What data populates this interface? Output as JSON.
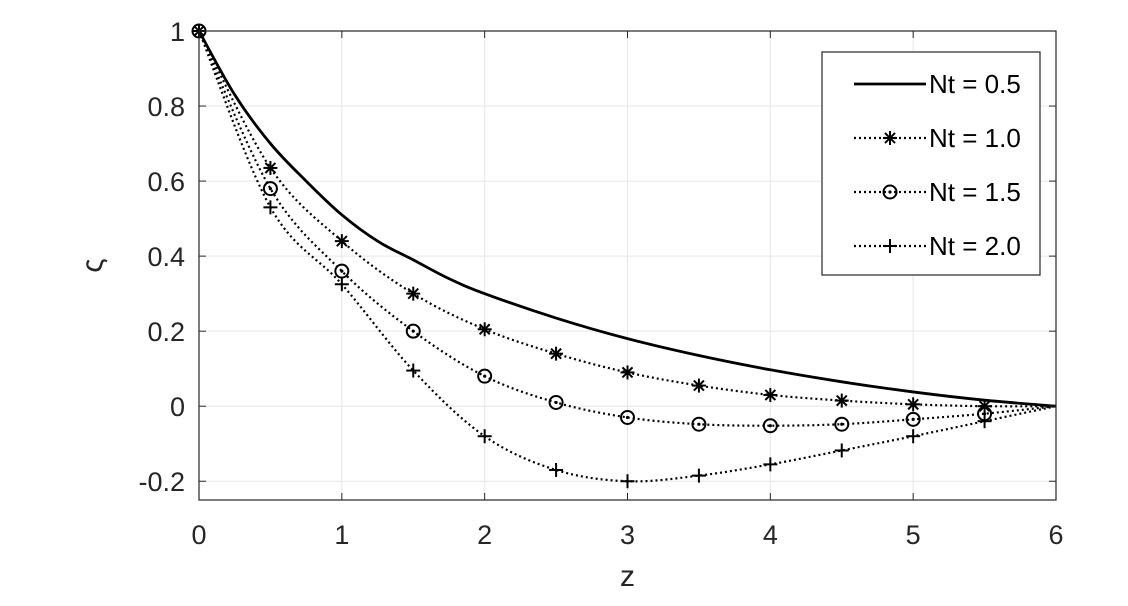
{
  "chart_data": {
    "type": "line",
    "title": "",
    "xlabel": "z",
    "ylabel": "ς",
    "xlim": [
      0,
      6
    ],
    "ylim": [
      -0.25,
      1.0
    ],
    "xticks": [
      "0",
      "1",
      "2",
      "3",
      "4",
      "5",
      "6"
    ],
    "yticks": [
      "-0.2",
      "0",
      "0.2",
      "0.4",
      "0.6",
      "0.8",
      "1"
    ],
    "grid": true,
    "legend_position": "top-right",
    "colors": {
      "line": "#000000",
      "axis": "#262626",
      "grid": "#e6e6e6"
    },
    "series": [
      {
        "name": "Nt = 0.5",
        "style": "solid",
        "marker": "none",
        "x": [
          0,
          0.25,
          0.5,
          0.75,
          1.0,
          1.25,
          1.5,
          1.75,
          2.0,
          2.5,
          3.0,
          3.5,
          4.0,
          4.5,
          5.0,
          5.5,
          6.0
        ],
        "y": [
          1.0,
          0.83,
          0.7,
          0.6,
          0.51,
          0.44,
          0.39,
          0.34,
          0.3,
          0.235,
          0.18,
          0.135,
          0.097,
          0.065,
          0.038,
          0.016,
          0.0
        ]
      },
      {
        "name": "Nt = 1.0",
        "style": "dotted",
        "marker": "asterisk",
        "x": [
          0,
          0.5,
          1.0,
          1.5,
          2.0,
          2.5,
          3.0,
          3.5,
          4.0,
          4.5,
          5.0,
          5.5,
          6.0
        ],
        "y": [
          1.0,
          0.635,
          0.44,
          0.3,
          0.205,
          0.14,
          0.09,
          0.055,
          0.03,
          0.015,
          0.005,
          0.0,
          0.0
        ],
        "markers_x": [
          0,
          0.5,
          1.0,
          1.5,
          2.0,
          2.5,
          3.0,
          3.5,
          4.0,
          4.5,
          5.0,
          5.5
        ]
      },
      {
        "name": "Nt = 1.5",
        "style": "dotted",
        "marker": "circle",
        "x": [
          0,
          0.5,
          1.0,
          1.5,
          2.0,
          2.5,
          3.0,
          3.5,
          4.0,
          4.5,
          5.0,
          5.5,
          6.0
        ],
        "y": [
          1.0,
          0.58,
          0.36,
          0.2,
          0.08,
          0.01,
          -0.03,
          -0.048,
          -0.052,
          -0.048,
          -0.035,
          -0.02,
          0.0
        ],
        "markers_x": [
          0,
          0.5,
          1.0,
          1.5,
          2.0,
          2.5,
          3.0,
          3.5,
          4.0,
          4.5,
          5.0,
          5.5
        ]
      },
      {
        "name": "Nt = 2.0",
        "style": "dotted",
        "marker": "plus",
        "x": [
          0,
          0.5,
          1.0,
          1.5,
          2.0,
          2.5,
          3.0,
          3.5,
          4.0,
          4.5,
          5.0,
          5.5,
          6.0
        ],
        "y": [
          1.0,
          0.53,
          0.325,
          0.095,
          -0.08,
          -0.17,
          -0.2,
          -0.185,
          -0.155,
          -0.118,
          -0.08,
          -0.04,
          0.0
        ],
        "markers_x": [
          0,
          0.5,
          1.0,
          1.5,
          2.0,
          2.5,
          3.0,
          3.5,
          4.0,
          4.5,
          5.0,
          5.5
        ]
      }
    ]
  }
}
